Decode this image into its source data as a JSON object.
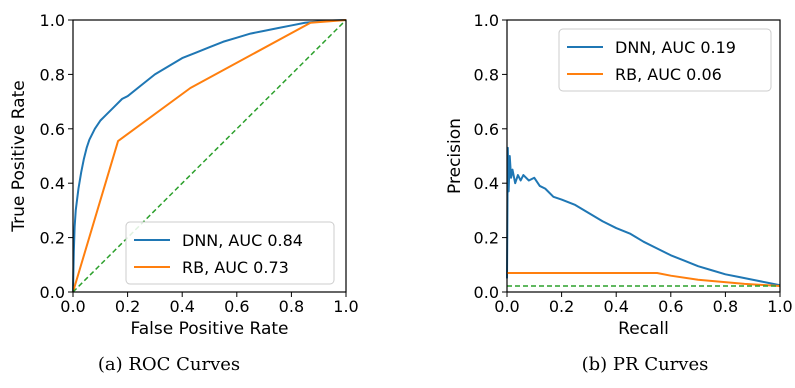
{
  "chart_data": [
    {
      "type": "line",
      "xlabel": "False Positive Rate",
      "ylabel": "True Positive Rate",
      "caption": "(a) ROC Curves",
      "xlim": [
        0,
        1
      ],
      "ylim": [
        0,
        1
      ],
      "xticks": [
        "0.0",
        "0.2",
        "0.4",
        "0.6",
        "0.8",
        "1.0"
      ],
      "yticks": [
        "0.0",
        "0.2",
        "0.4",
        "0.6",
        "0.8",
        "1.0"
      ],
      "grid": false,
      "legend_position": "bottom-right",
      "series": [
        {
          "name": "DNN, AUC 0.84",
          "color": "#1f77b4",
          "x": [
            0,
            0.003,
            0.006,
            0.01,
            0.015,
            0.02,
            0.03,
            0.04,
            0.05,
            0.06,
            0.08,
            0.1,
            0.12,
            0.15,
            0.18,
            0.2,
            0.25,
            0.3,
            0.35,
            0.4,
            0.45,
            0.5,
            0.55,
            0.6,
            0.65,
            0.7,
            0.75,
            0.8,
            0.85,
            0.9,
            0.95,
            1.0
          ],
          "y": [
            0,
            0.15,
            0.24,
            0.3,
            0.34,
            0.38,
            0.44,
            0.49,
            0.53,
            0.56,
            0.6,
            0.63,
            0.65,
            0.68,
            0.71,
            0.72,
            0.76,
            0.8,
            0.83,
            0.86,
            0.88,
            0.9,
            0.92,
            0.935,
            0.95,
            0.96,
            0.97,
            0.98,
            0.99,
            0.995,
            0.998,
            1.0
          ]
        },
        {
          "name": "RB, AUC 0.73",
          "color": "#ff7f0e",
          "x": [
            0,
            0.165,
            0.43,
            0.87,
            1.0
          ],
          "y": [
            0,
            0.555,
            0.75,
            0.99,
            1.0
          ]
        },
        {
          "name": "",
          "color": "#2ca02c",
          "dashed": true,
          "x": [
            0,
            1
          ],
          "y": [
            0,
            1
          ]
        }
      ]
    },
    {
      "type": "line",
      "xlabel": "Recall",
      "ylabel": "Precision",
      "caption": "(b) PR Curves",
      "xlim": [
        0,
        1
      ],
      "ylim": [
        0,
        1
      ],
      "xticks": [
        "0.0",
        "0.2",
        "0.4",
        "0.6",
        "0.8",
        "1.0"
      ],
      "yticks": [
        "0.0",
        "0.2",
        "0.4",
        "0.6",
        "0.8",
        "1.0"
      ],
      "grid": false,
      "legend_position": "top-right",
      "series": [
        {
          "name": "DNN, AUC 0.19",
          "color": "#1f77b4",
          "x": [
            0,
            0.003,
            0.006,
            0.01,
            0.015,
            0.02,
            0.03,
            0.04,
            0.05,
            0.06,
            0.08,
            0.1,
            0.12,
            0.14,
            0.17,
            0.2,
            0.25,
            0.3,
            0.35,
            0.4,
            0.45,
            0.5,
            0.55,
            0.6,
            0.65,
            0.7,
            0.75,
            0.8,
            0.85,
            0.9,
            0.95,
            1.0
          ],
          "y": [
            0.05,
            0.53,
            0.37,
            0.5,
            0.42,
            0.45,
            0.4,
            0.43,
            0.41,
            0.43,
            0.41,
            0.42,
            0.39,
            0.38,
            0.35,
            0.34,
            0.32,
            0.29,
            0.26,
            0.235,
            0.215,
            0.185,
            0.16,
            0.135,
            0.115,
            0.095,
            0.08,
            0.065,
            0.055,
            0.045,
            0.035,
            0.025
          ]
        },
        {
          "name": "RB, AUC 0.06",
          "color": "#ff7f0e",
          "x": [
            0,
            0.165,
            0.43,
            0.55,
            0.6,
            0.7,
            0.87,
            1.0
          ],
          "y": [
            0.07,
            0.07,
            0.07,
            0.07,
            0.06,
            0.045,
            0.03,
            0.022
          ]
        },
        {
          "name": "",
          "color": "#2ca02c",
          "dashed": true,
          "x": [
            0,
            1
          ],
          "y": [
            0.022,
            0.022
          ]
        }
      ]
    }
  ]
}
